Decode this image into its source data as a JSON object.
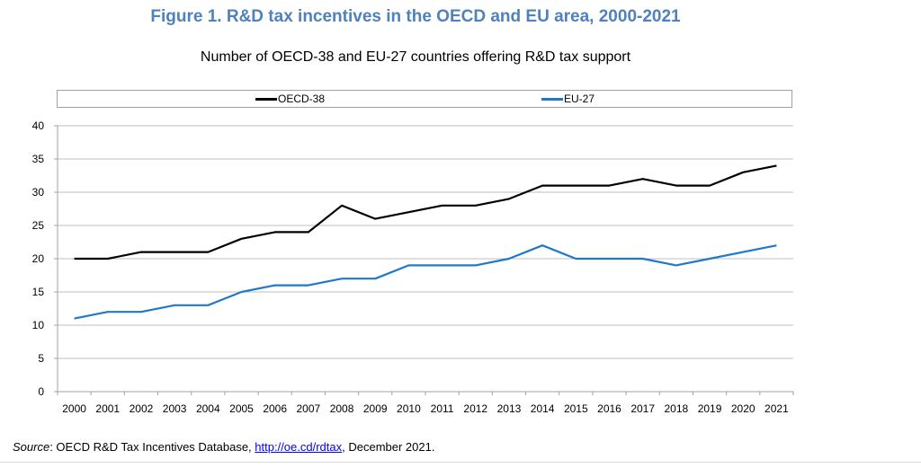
{
  "figure": {
    "title": "Figure 1. R&D tax incentives in the OECD and EU area, 2000-2021",
    "subtitle": "Number of OECD-38 and EU-27 countries offering R&D tax support"
  },
  "source": {
    "label": "Source",
    "text_before": ": OECD R&D Tax Incentives Database, ",
    "link": "http://oe.cd/rdtax",
    "text_after": ", December 2021."
  },
  "colors": {
    "title": "#4f81bd",
    "oecd": "#000000",
    "eu": "#1f78c8",
    "grid": "#bfbfbf"
  },
  "chart_data": {
    "type": "line",
    "title": "Number of OECD-38 and EU-27 countries offering R&D tax support",
    "xlabel": "",
    "ylabel": "",
    "ylim": [
      0,
      40
    ],
    "yticks": [
      0,
      5,
      10,
      15,
      20,
      25,
      30,
      35,
      40
    ],
    "grid": true,
    "legend_position": "top",
    "x": [
      "2000",
      "2001",
      "2002",
      "2003",
      "2004",
      "2005",
      "2006",
      "2007",
      "2008",
      "2009",
      "2010",
      "2011",
      "2012",
      "2013",
      "2014",
      "2015",
      "2016",
      "2017",
      "2018",
      "2019",
      "2020",
      "2021"
    ],
    "series": [
      {
        "name": "OECD-38",
        "color": "#000000",
        "values": [
          20,
          20,
          21,
          21,
          21,
          23,
          24,
          24,
          28,
          26,
          27,
          28,
          28,
          29,
          31,
          31,
          31,
          32,
          31,
          31,
          33,
          34
        ]
      },
      {
        "name": "EU-27",
        "color": "#1f78c8",
        "values": [
          11,
          12,
          12,
          13,
          13,
          15,
          16,
          16,
          17,
          17,
          19,
          19,
          19,
          20,
          22,
          20,
          20,
          20,
          19,
          20,
          21,
          22
        ]
      }
    ]
  }
}
